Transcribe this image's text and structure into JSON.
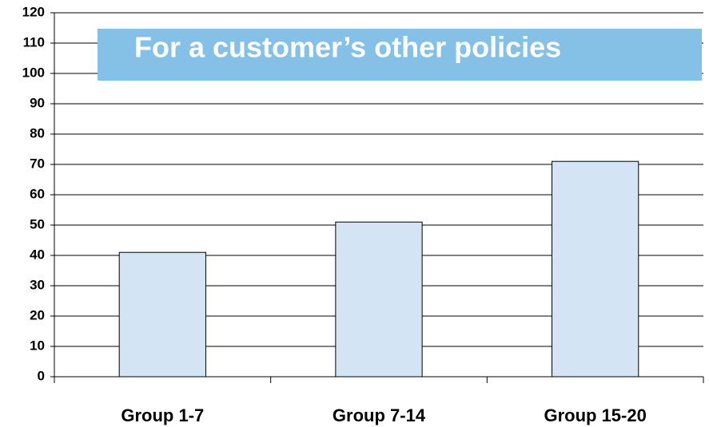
{
  "chart_data": {
    "type": "bar",
    "title": "For a customer’s other policies",
    "categories": [
      "Group 1-7",
      "Group 7-14",
      "Group 15-20"
    ],
    "values": [
      41,
      51,
      71
    ],
    "color": "#d3e5f5",
    "ylim": [
      0,
      120
    ],
    "yticks": [
      0,
      10,
      20,
      30,
      40,
      50,
      60,
      70,
      80,
      90,
      100,
      110,
      120
    ],
    "grid": true
  }
}
